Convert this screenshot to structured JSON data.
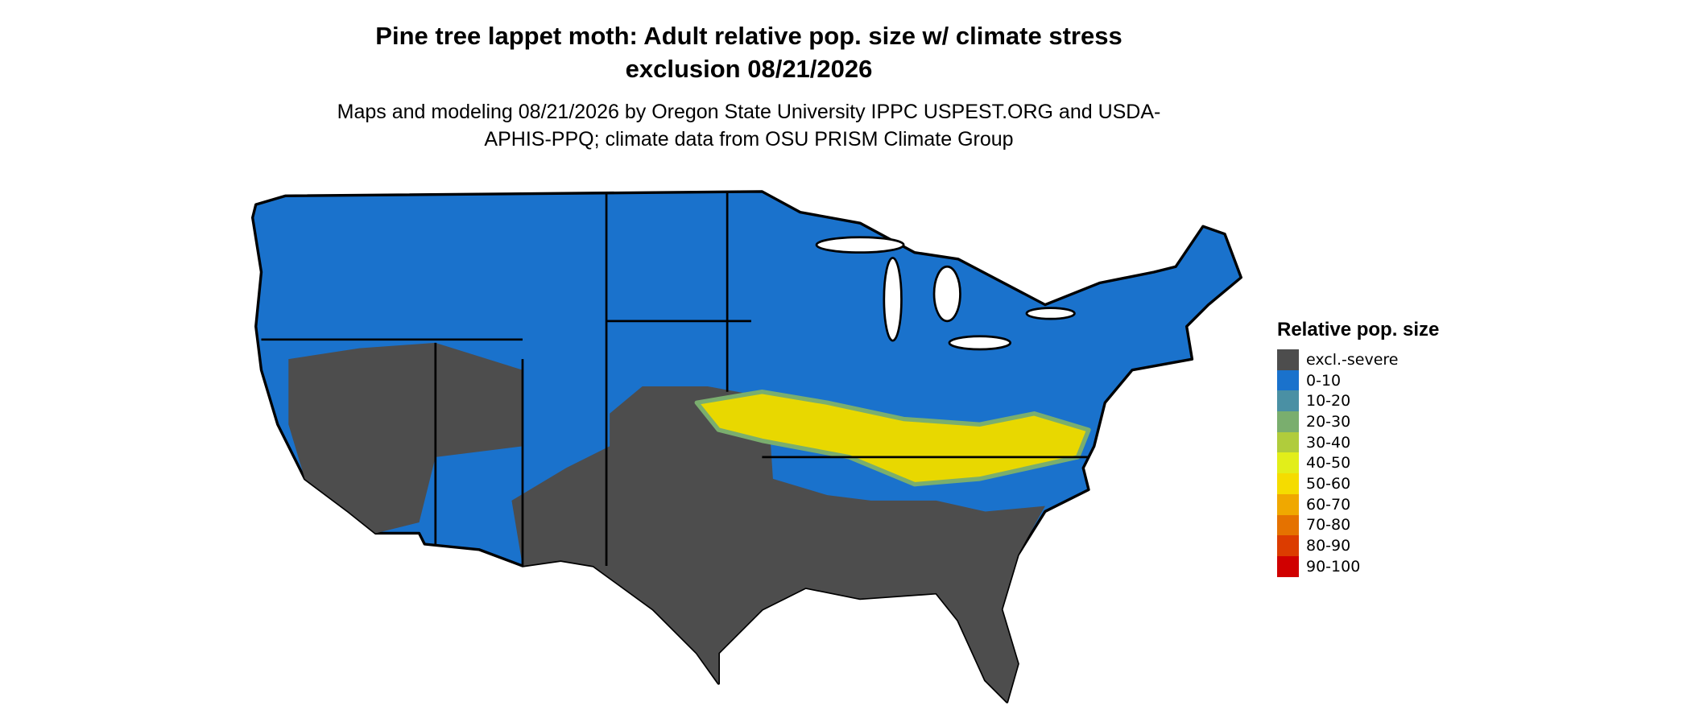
{
  "title": "Pine tree lappet moth: Adult relative pop. size w/ climate stress exclusion 08/21/2026",
  "subtitle": "Maps and modeling 08/21/2026 by Oregon State University IPPC USPEST.ORG and USDA-APHIS-PPQ; climate data from OSU PRISM Climate Group",
  "legend": {
    "title": "Relative pop. size",
    "items": [
      {
        "label": "excl.-severe",
        "color": "#4d4d4d"
      },
      {
        "label": "0-10",
        "color": "#1a72cc"
      },
      {
        "label": "10-20",
        "color": "#4a90a4"
      },
      {
        "label": "20-30",
        "color": "#7aae6e"
      },
      {
        "label": "30-40",
        "color": "#b0cc3c"
      },
      {
        "label": "40-50",
        "color": "#e2ee1a"
      },
      {
        "label": "50-60",
        "color": "#f5dc00"
      },
      {
        "label": "60-70",
        "color": "#f0a800"
      },
      {
        "label": "70-80",
        "color": "#e57200"
      },
      {
        "label": "80-90",
        "color": "#dc3c00"
      },
      {
        "label": "90-100",
        "color": "#d00000"
      }
    ]
  }
}
